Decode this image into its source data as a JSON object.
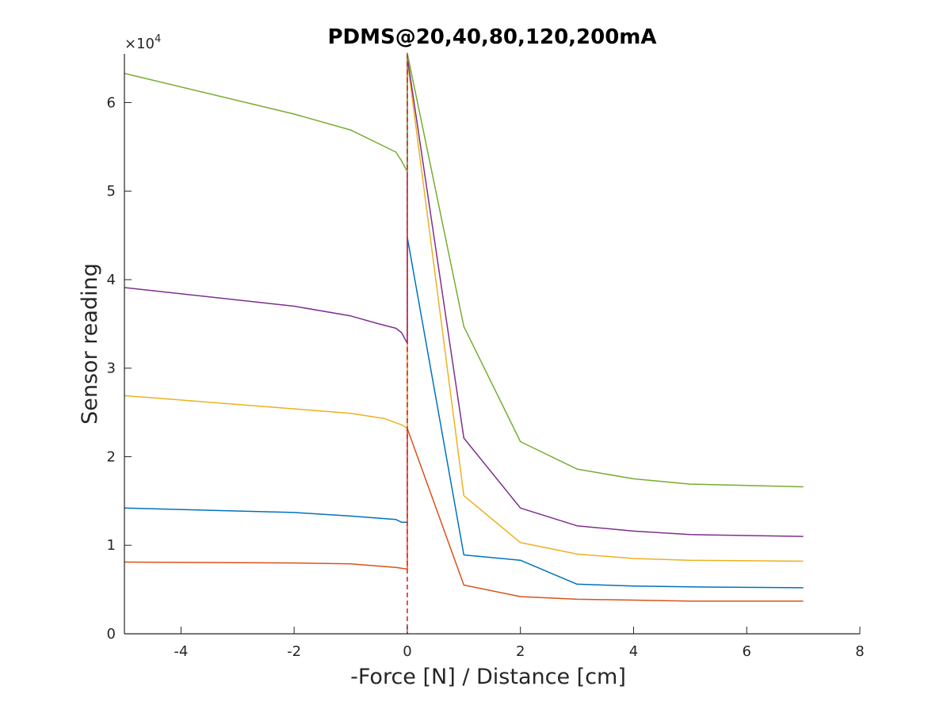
{
  "chart_data": {
    "type": "line",
    "title": "PDMS@20,40,80,120,200mA",
    "xlabel": "-Force [N] / Distance [cm]",
    "ylabel": "Sensor reading",
    "exponent_label": "×10",
    "exponent_power": "4",
    "xlim": [
      -5,
      8
    ],
    "ylim": [
      0,
      65500
    ],
    "xticks": [
      -4,
      -2,
      0,
      2,
      4,
      6,
      8
    ],
    "xtick_labels": [
      "-4",
      "-2",
      "0",
      "2",
      "4",
      "6",
      "8"
    ],
    "yticks": [
      0,
      10000,
      20000,
      30000,
      40000,
      50000,
      60000
    ],
    "ytick_labels": [
      "0",
      "1",
      "2",
      "3",
      "4",
      "5",
      "6"
    ],
    "grid": false,
    "vertical_marker": {
      "x": 0,
      "color": "#d62728",
      "style": "dashed"
    },
    "series": [
      {
        "color": "#0072BD",
        "x": [
          -5,
          -2,
          -1,
          -0.2,
          -0.1,
          0,
          0,
          1,
          2,
          3,
          4,
          5,
          7
        ],
        "y": [
          14200,
          13700,
          13300,
          12900,
          12600,
          12600,
          44800,
          8900,
          8300,
          5600,
          5400,
          5300,
          5200
        ]
      },
      {
        "color": "#D95319",
        "x": [
          -5,
          -2,
          -1,
          -0.2,
          0,
          0,
          1,
          2,
          3,
          4,
          5,
          7
        ],
        "y": [
          8100,
          8000,
          7900,
          7500,
          7300,
          23200,
          5500,
          4200,
          3900,
          3800,
          3700,
          3700
        ]
      },
      {
        "color": "#EDB120",
        "x": [
          -5,
          -2,
          -1,
          -0.4,
          -0.1,
          0,
          0,
          1,
          2,
          3,
          4,
          5,
          7
        ],
        "y": [
          26900,
          25400,
          24900,
          24300,
          23600,
          23200,
          64800,
          15600,
          10300,
          9000,
          8500,
          8300,
          8200
        ]
      },
      {
        "color": "#7E2F8E",
        "x": [
          -5,
          -2,
          -1,
          -0.5,
          -0.2,
          -0.1,
          0,
          0,
          1,
          2,
          3,
          4,
          5,
          7
        ],
        "y": [
          39100,
          37000,
          35900,
          35000,
          34500,
          34000,
          32800,
          65200,
          22100,
          14200,
          12200,
          11600,
          11200,
          11000
        ]
      },
      {
        "color": "#77AC30",
        "x": [
          -5,
          -2,
          -1,
          -0.2,
          -0.1,
          0,
          0,
          1,
          2,
          3,
          4,
          5,
          7
        ],
        "y": [
          63300,
          58700,
          56900,
          54400,
          53400,
          52200,
          65600,
          34700,
          21700,
          18600,
          17500,
          16900,
          16600
        ]
      }
    ]
  }
}
